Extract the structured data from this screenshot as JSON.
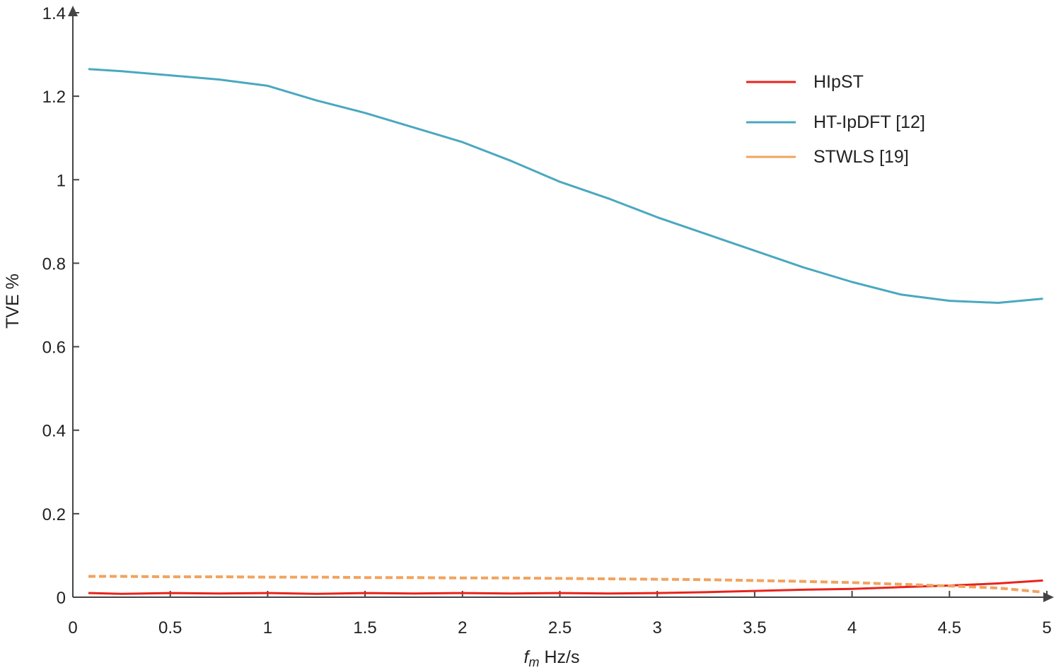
{
  "chart_data": {
    "type": "line",
    "title": "",
    "xlabel_italic": "f",
    "xlabel_sub": "m",
    "xlabel_rest": " Hz/s",
    "ylabel": "TVE %",
    "xlim": [
      0,
      5
    ],
    "ylim": [
      0,
      1.4
    ],
    "xticks": [
      0,
      0.5,
      1,
      1.5,
      2,
      2.5,
      3,
      3.5,
      4,
      4.5,
      5
    ],
    "xtick_labels": [
      "0",
      "0.5",
      "1",
      "1.5",
      "2",
      "2.5",
      "3",
      "3.5",
      "4",
      "4.5",
      "5"
    ],
    "yticks": [
      0,
      0.2,
      0.4,
      0.6,
      0.8,
      1,
      1.2,
      1.4
    ],
    "ytick_labels": [
      "0",
      "0.2",
      "0.4",
      "0.6",
      "0.8",
      "1",
      "1.2",
      "1.4"
    ],
    "grid": false,
    "legend_position": "top-right",
    "series": [
      {
        "name": "HIpST",
        "color": "#e8231c",
        "dashed": false,
        "x": [
          0.08,
          0.25,
          0.5,
          0.75,
          1.0,
          1.25,
          1.5,
          1.75,
          2.0,
          2.25,
          2.5,
          2.75,
          3.0,
          3.25,
          3.5,
          3.75,
          4.0,
          4.25,
          4.5,
          4.75,
          4.98
        ],
        "y": [
          0.01,
          0.008,
          0.01,
          0.009,
          0.01,
          0.008,
          0.01,
          0.009,
          0.01,
          0.009,
          0.01,
          0.009,
          0.01,
          0.012,
          0.015,
          0.018,
          0.02,
          0.024,
          0.028,
          0.033,
          0.04
        ]
      },
      {
        "name": "HT-IpDFT [12]",
        "color": "#4aa8c0",
        "dashed": false,
        "x": [
          0.08,
          0.25,
          0.5,
          0.75,
          1.0,
          1.25,
          1.5,
          1.75,
          2.0,
          2.25,
          2.5,
          2.75,
          3.0,
          3.25,
          3.5,
          3.75,
          4.0,
          4.25,
          4.5,
          4.75,
          4.98
        ],
        "y": [
          1.265,
          1.26,
          1.25,
          1.24,
          1.225,
          1.19,
          1.16,
          1.125,
          1.09,
          1.045,
          0.995,
          0.955,
          0.91,
          0.87,
          0.83,
          0.79,
          0.755,
          0.725,
          0.71,
          0.705,
          0.715
        ]
      },
      {
        "name": "STWLS [19]",
        "color": "#f2a35e",
        "dashed": true,
        "x": [
          0.08,
          0.25,
          0.5,
          0.75,
          1.0,
          1.25,
          1.5,
          1.75,
          2.0,
          2.25,
          2.5,
          2.75,
          3.0,
          3.25,
          3.5,
          3.75,
          4.0,
          4.25,
          4.5,
          4.75,
          4.98
        ],
        "y": [
          0.05,
          0.05,
          0.049,
          0.049,
          0.048,
          0.048,
          0.047,
          0.047,
          0.046,
          0.046,
          0.045,
          0.044,
          0.043,
          0.042,
          0.04,
          0.038,
          0.035,
          0.031,
          0.027,
          0.022,
          0.012
        ]
      }
    ]
  }
}
